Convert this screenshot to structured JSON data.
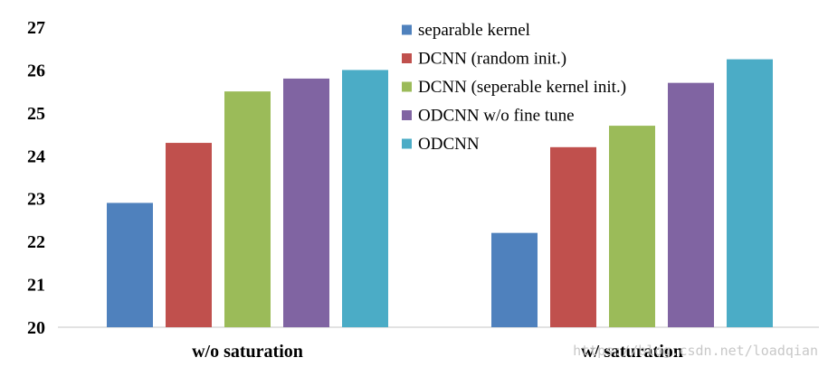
{
  "chart_data": {
    "type": "bar",
    "categories": [
      "w/o saturation",
      "w/ saturation"
    ],
    "series": [
      {
        "name": "separable kernel",
        "values": [
          22.9,
          22.2
        ],
        "color": "#4f81bd"
      },
      {
        "name": "DCNN (random init.)",
        "values": [
          24.3,
          24.2
        ],
        "color": "#c0504d"
      },
      {
        "name": "DCNN (seperable kernel init.)",
        "values": [
          25.5,
          24.7
        ],
        "color": "#9bbb59"
      },
      {
        "name": "ODCNN w/o fine tune",
        "values": [
          25.8,
          25.7
        ],
        "color": "#8064a2"
      },
      {
        "name": "ODCNN",
        "values": [
          26.0,
          26.25
        ],
        "color": "#4bacc6"
      }
    ],
    "ylim": [
      20,
      27
    ],
    "yticks": [
      "20",
      "21",
      "22",
      "23",
      "24",
      "25",
      "26",
      "27"
    ],
    "title": "",
    "xlabel": "",
    "ylabel": "",
    "grid": false,
    "legend_position": "top-right"
  },
  "watermark": "https://blog.csdn.net/loadqian"
}
